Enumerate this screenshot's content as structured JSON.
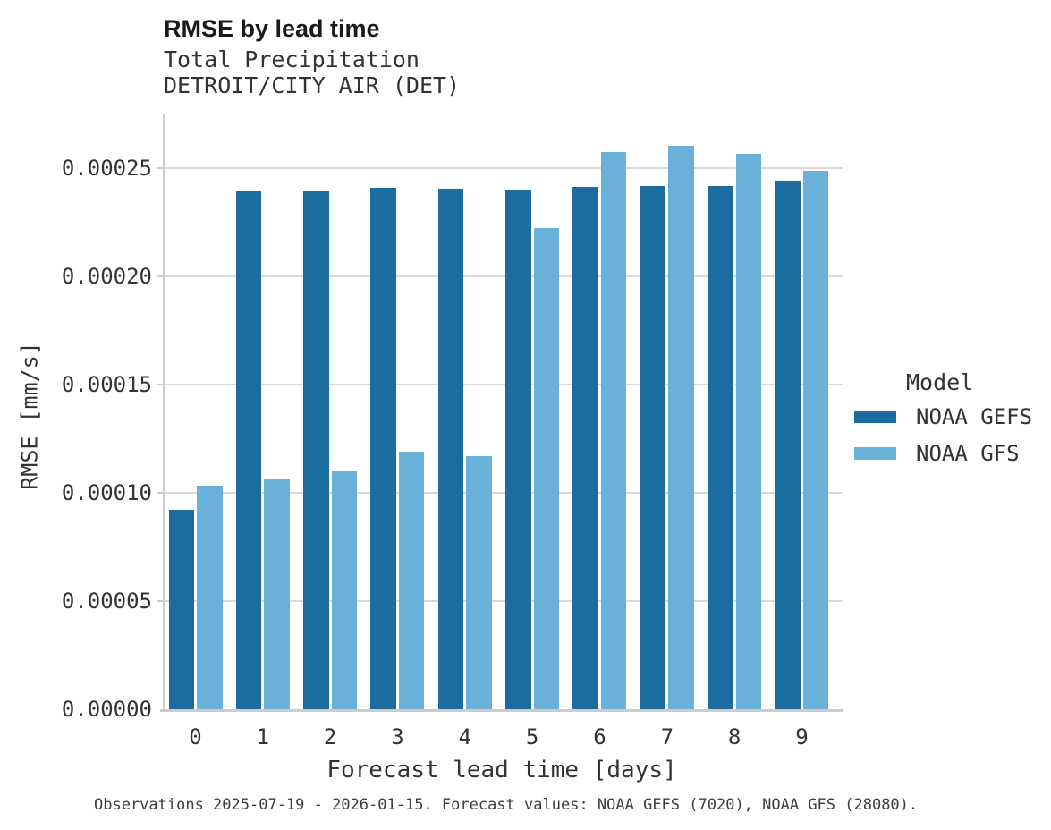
{
  "header": {
    "title": "RMSE by lead time",
    "subtitle1": "Total Precipitation",
    "subtitle2": "DETROIT/CITY AIR (DET)"
  },
  "legend": {
    "title": "Model",
    "entries": [
      {
        "label": "NOAA GEFS",
        "color": "#1a6d9e"
      },
      {
        "label": "NOAA GFS",
        "color": "#69b1d8"
      }
    ]
  },
  "footer": {
    "caption": "Observations 2025-07-19 - 2026-01-15. Forecast values: NOAA GEFS (7020), NOAA GFS (28080)."
  },
  "chart_data": {
    "type": "bar",
    "title": "RMSE by lead time",
    "subtitle": [
      "Total Precipitation",
      "DETROIT/CITY AIR (DET)"
    ],
    "xlabel": "Forecast lead time [days]",
    "ylabel": "RMSE [mm/s]",
    "categories": [
      "0",
      "1",
      "2",
      "3",
      "4",
      "5",
      "6",
      "7",
      "8",
      "9"
    ],
    "series": [
      {
        "name": "NOAA GEFS",
        "color": "#1a6d9e",
        "values": [
          9.22e-05,
          0.0002392,
          0.0002392,
          0.0002409,
          0.0002403,
          0.0002401,
          0.0002414,
          0.0002417,
          0.0002417,
          0.000244
        ]
      },
      {
        "name": "NOAA GFS",
        "color": "#69b1d8",
        "values": [
          0.0001033,
          0.0001063,
          0.0001099,
          0.000119,
          0.000117,
          0.0002221,
          0.0002574,
          0.0002601,
          0.0002565,
          0.0002485
        ]
      }
    ],
    "ylim": [
      0,
      0.00025
    ],
    "yticks": [
      0,
      5e-05,
      0.0001,
      0.00015,
      0.0002,
      0.00025
    ],
    "ytick_labels": [
      "0.00000",
      "0.00005",
      "0.00010",
      "0.00015",
      "0.00020",
      "0.00025"
    ],
    "grid": true,
    "legend_position": "right",
    "legend_title": "Model"
  }
}
